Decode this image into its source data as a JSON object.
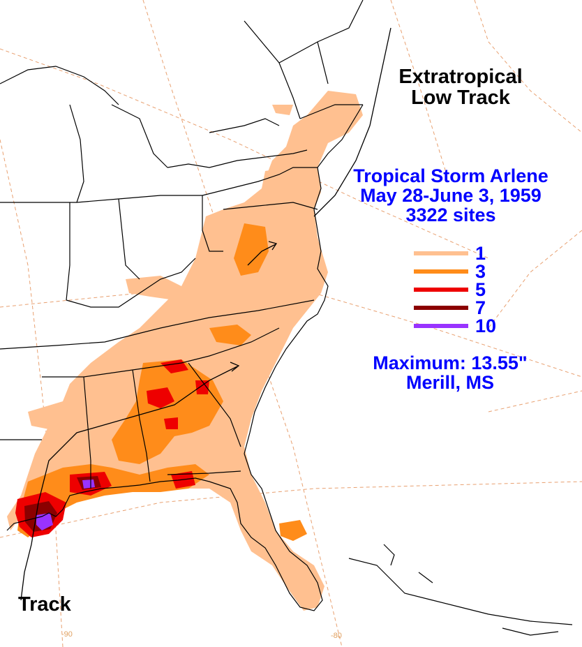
{
  "title": {
    "line1": "Tropical Storm Arlene",
    "line2": "May 28-June 3, 1959",
    "line3": "3322 sites"
  },
  "extratropical": {
    "line1": "Extratropical",
    "line2": "Low Track"
  },
  "legend": [
    {
      "label": "1",
      "color": "#ffc090"
    },
    {
      "label": "3",
      "color": "#ff8c1a"
    },
    {
      "label": "5",
      "color": "#ee0000"
    },
    {
      "label": "7",
      "color": "#8b0000"
    },
    {
      "label": "10",
      "color": "#9933ff"
    }
  ],
  "maximum": {
    "line1": "Maximum:  13.55\"",
    "line2": "Merill, MS"
  },
  "track_label": "Track",
  "longitude_labels": [
    "-90",
    "-80"
  ],
  "colors": {
    "text_blue": "#0000ff",
    "boundaries": "#000000",
    "graticule": "#e8a070"
  }
}
